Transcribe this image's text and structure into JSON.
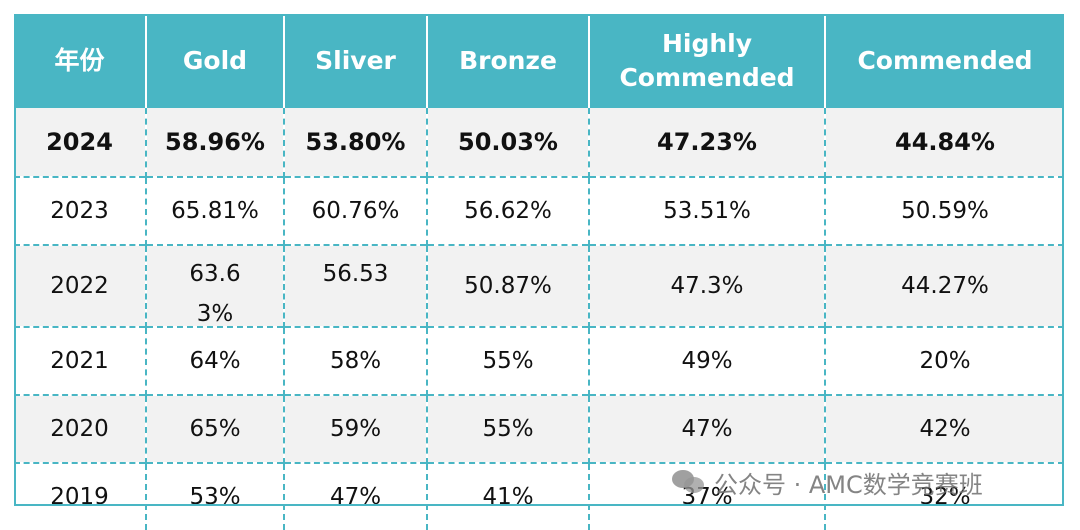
{
  "table": {
    "headers": [
      "年份",
      "Gold",
      "Sliver",
      "Bronze",
      "Highly Commended",
      "Commended"
    ],
    "rows": [
      [
        "2024",
        "58.96%",
        "53.80%",
        "50.03%",
        "47.23%",
        "44.84%"
      ],
      [
        "2023",
        "65.81%",
        "60.76%",
        "56.62%",
        "53.51%",
        "50.59%"
      ],
      [
        "2022",
        "63.63%",
        "56.53",
        "50.87%",
        "47.3%",
        "44.27%"
      ],
      [
        "2021",
        "64%",
        "58%",
        "55%",
        "49%",
        "20%"
      ],
      [
        "2020",
        "65%",
        "59%",
        "55%",
        "47%",
        "42%"
      ],
      [
        "2019",
        "53%",
        "47%",
        "41%",
        "37%",
        "32%"
      ]
    ]
  },
  "colors": {
    "header_bg": "#49b6c4",
    "shaded_row": "#f2f2f2",
    "grid": "#49b6c4"
  },
  "watermark": {
    "text": "公众号 · AMC数学竞赛班",
    "icon": "wechat-icon"
  }
}
